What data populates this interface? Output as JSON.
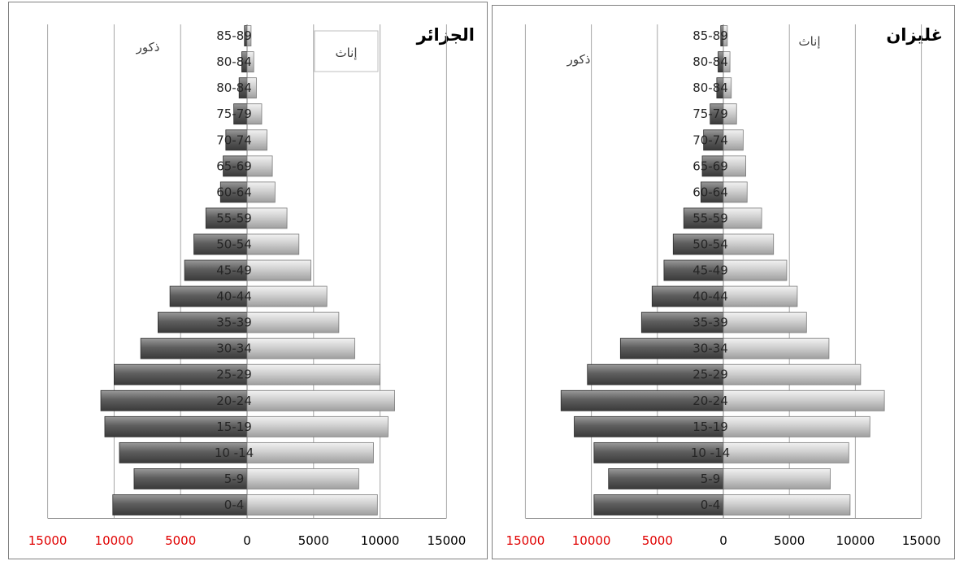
{
  "colors": {
    "male_dark": "#4a4a4a",
    "male_light": "#8c8c8c",
    "female_dark": "#9a9a9a",
    "female_light": "#e0e0e0",
    "tick_red": "#e00000",
    "tick_black": "#000000",
    "grid": "#a6a6a6"
  },
  "chart_data": [
    {
      "type": "bar",
      "title": "الجزائر",
      "categories": [
        "0-4",
        "5-9",
        "10 -14",
        "15-19",
        "20-24",
        "25-29",
        "30-34",
        "35-39",
        "40-44",
        "45-49",
        "50-54",
        "55-59",
        "60-64",
        "65-69",
        "70-74",
        "75-79",
        "80-84",
        "80-84",
        "85-89"
      ],
      "series": [
        {
          "name": "ذكور",
          "values": [
            10100,
            8500,
            9600,
            10700,
            11000,
            10000,
            8000,
            6700,
            5800,
            4700,
            4000,
            3100,
            2000,
            1800,
            1600,
            1000,
            600,
            400,
            200
          ]
        },
        {
          "name": "إناث",
          "values": [
            9800,
            8400,
            9500,
            10600,
            11100,
            10000,
            8100,
            6900,
            6000,
            4800,
            3900,
            3000,
            2100,
            1900,
            1500,
            1100,
            700,
            500,
            300
          ]
        }
      ],
      "xlim": [
        -15000,
        15000
      ],
      "xticks": [
        "15000",
        "10000",
        "5000",
        "0",
        "5000",
        "10000",
        "15000"
      ],
      "grid": true,
      "legend_box": "إناث"
    },
    {
      "type": "bar",
      "title": "غليزان",
      "categories": [
        "0-4",
        "5-9",
        "10 -14",
        "15-19",
        "20-24",
        "25-29",
        "30-34",
        "35-39",
        "40-44",
        "45-49",
        "50-54",
        "55-59",
        "60-64",
        "65-69",
        "70-74",
        "75-79",
        "80-84",
        "80-84",
        "85-89"
      ],
      "series": [
        {
          "name": "ذكور",
          "values": [
            9800,
            8700,
            9800,
            11300,
            12300,
            10300,
            7800,
            6200,
            5400,
            4500,
            3800,
            3000,
            1700,
            1600,
            1500,
            1000,
            500,
            400,
            200
          ]
        },
        {
          "name": "إناث",
          "values": [
            9600,
            8100,
            9500,
            11100,
            12200,
            10400,
            8000,
            6300,
            5600,
            4800,
            3800,
            2900,
            1800,
            1700,
            1500,
            1000,
            600,
            500,
            300
          ]
        }
      ],
      "xlim": [
        -15000,
        15000
      ],
      "xticks": [
        "15000",
        "10000",
        "5000",
        "0",
        "5000",
        "10000",
        "15000"
      ],
      "grid": true,
      "legend_box": "إناث"
    }
  ]
}
